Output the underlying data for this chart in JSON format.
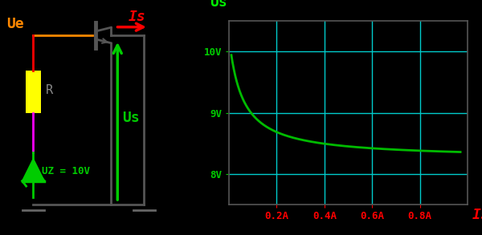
{
  "bg_color": "#000000",
  "circuit_bg": "#000000",
  "graph_bg": "#000000",
  "grid_color": "#00CCCC",
  "curve_color": "#00BB00",
  "label_us_color": "#00EE00",
  "label_is_color": "#FF0000",
  "label_ue_color": "#FF8800",
  "tick_color": "#FF0000",
  "ytick_color": "#00CC00",
  "resistor_fill": "#FFFF00",
  "zener_color": "#00CC00",
  "wire_top_color": "#FF8800",
  "wire_left_color": "#FF0000",
  "wire_bottom_color": "#FF00FF",
  "transistor_color": "#555555",
  "us_arrow_color": "#00CC00",
  "is_arrow_color": "#FF0000",
  "ylabel": "Us",
  "xlabel": "Is",
  "ue_label": "Ue",
  "us_label": "Us",
  "is_label": "Is",
  "uz_label": "UZ = 10V",
  "R_label": "R",
  "yticks": [
    8,
    9,
    10
  ],
  "ytick_labels": [
    "8V",
    "9V",
    "10V"
  ],
  "xticks": [
    0.2,
    0.4,
    0.6,
    0.8
  ],
  "xtick_labels": [
    "0.2A",
    "0.4A",
    "0.6A",
    "0.8A"
  ],
  "xlim": [
    0,
    1.0
  ],
  "ylim": [
    7.5,
    10.5
  ]
}
